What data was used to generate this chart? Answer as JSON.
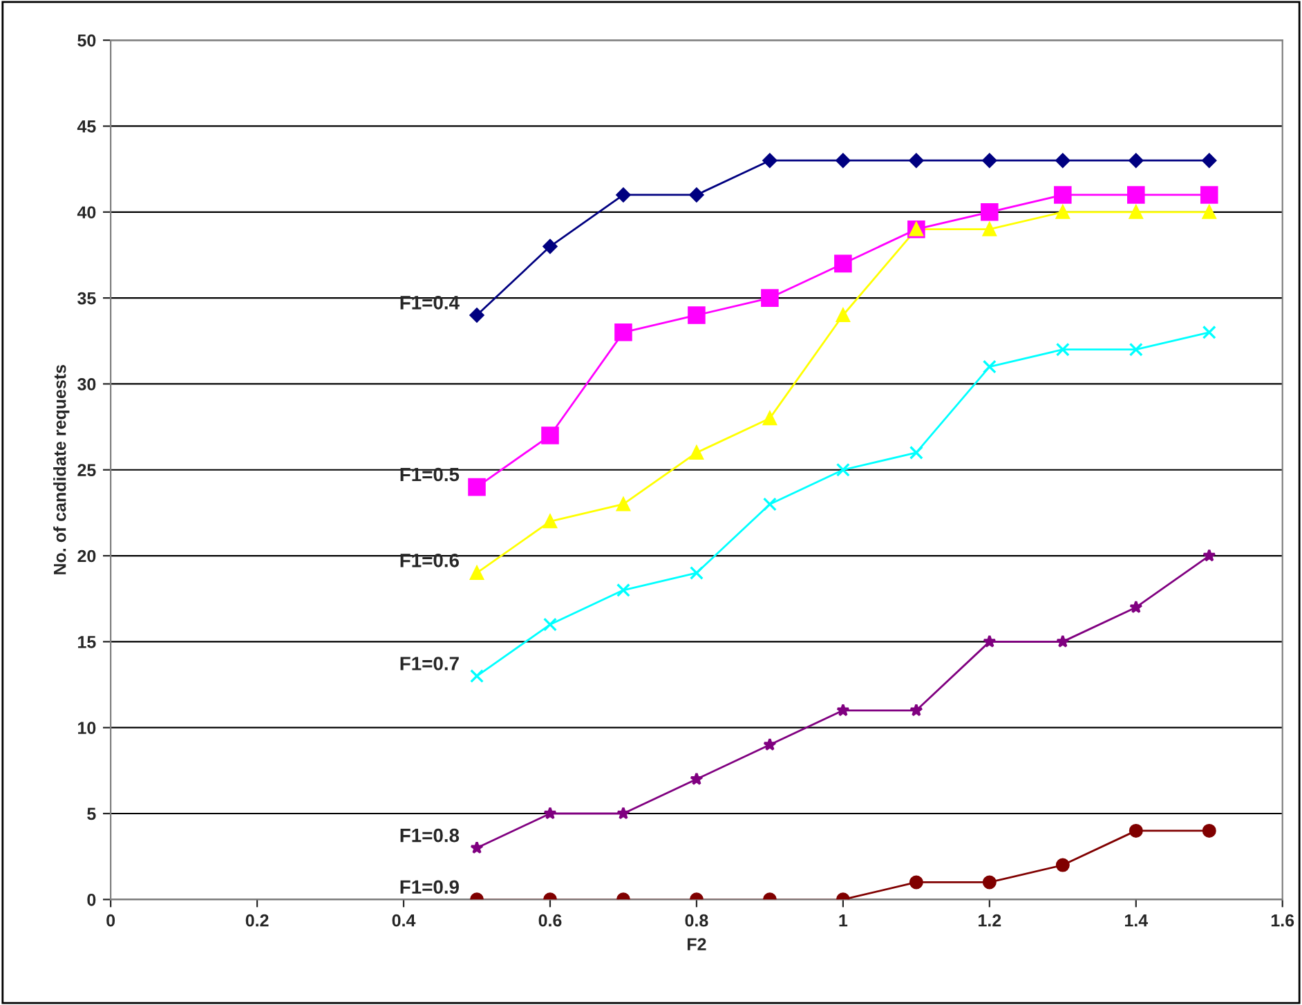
{
  "chart_data": {
    "type": "line",
    "xlabel": "F2",
    "ylabel": "No. of candidate requests",
    "x": [
      0.5,
      0.6,
      0.7,
      0.8,
      0.9,
      1.0,
      1.1,
      1.2,
      1.3,
      1.4,
      1.5
    ],
    "series": [
      {
        "name": "F1=0.4",
        "color": "#000080",
        "marker": "diamond",
        "values": [
          34,
          38,
          41,
          41,
          43,
          43,
          43,
          43,
          43,
          43,
          43
        ]
      },
      {
        "name": "F1=0.5",
        "color": "#ff00ff",
        "marker": "square",
        "values": [
          24,
          27,
          33,
          34,
          35,
          37,
          39,
          40,
          41,
          41,
          41
        ]
      },
      {
        "name": "F1=0.6",
        "color": "#ffff00",
        "marker": "triangle",
        "values": [
          19,
          22,
          23,
          26,
          28,
          34,
          39,
          39,
          40,
          40,
          40
        ]
      },
      {
        "name": "F1=0.7",
        "color": "#00ffff",
        "marker": "cross",
        "values": [
          13,
          16,
          18,
          19,
          23,
          25,
          26,
          31,
          32,
          32,
          33
        ]
      },
      {
        "name": "F1=0.8",
        "color": "#800080",
        "marker": "star",
        "values": [
          3,
          5,
          5,
          7,
          9,
          11,
          11,
          15,
          15,
          17,
          20
        ]
      },
      {
        "name": "F1=0.9",
        "color": "#800000",
        "marker": "circle",
        "values": [
          0,
          0,
          0,
          0,
          0,
          0,
          1,
          1,
          2,
          4,
          4
        ]
      }
    ],
    "xlim": [
      0,
      1.6
    ],
    "xticks": [
      0,
      0.2,
      0.4,
      0.6,
      0.8,
      1,
      1.2,
      1.4,
      1.6
    ],
    "ylim": [
      0,
      50
    ],
    "yticks": [
      0,
      5,
      10,
      15,
      20,
      25,
      30,
      35,
      40,
      45,
      50
    ],
    "grid": "y",
    "line_style": "solid"
  }
}
